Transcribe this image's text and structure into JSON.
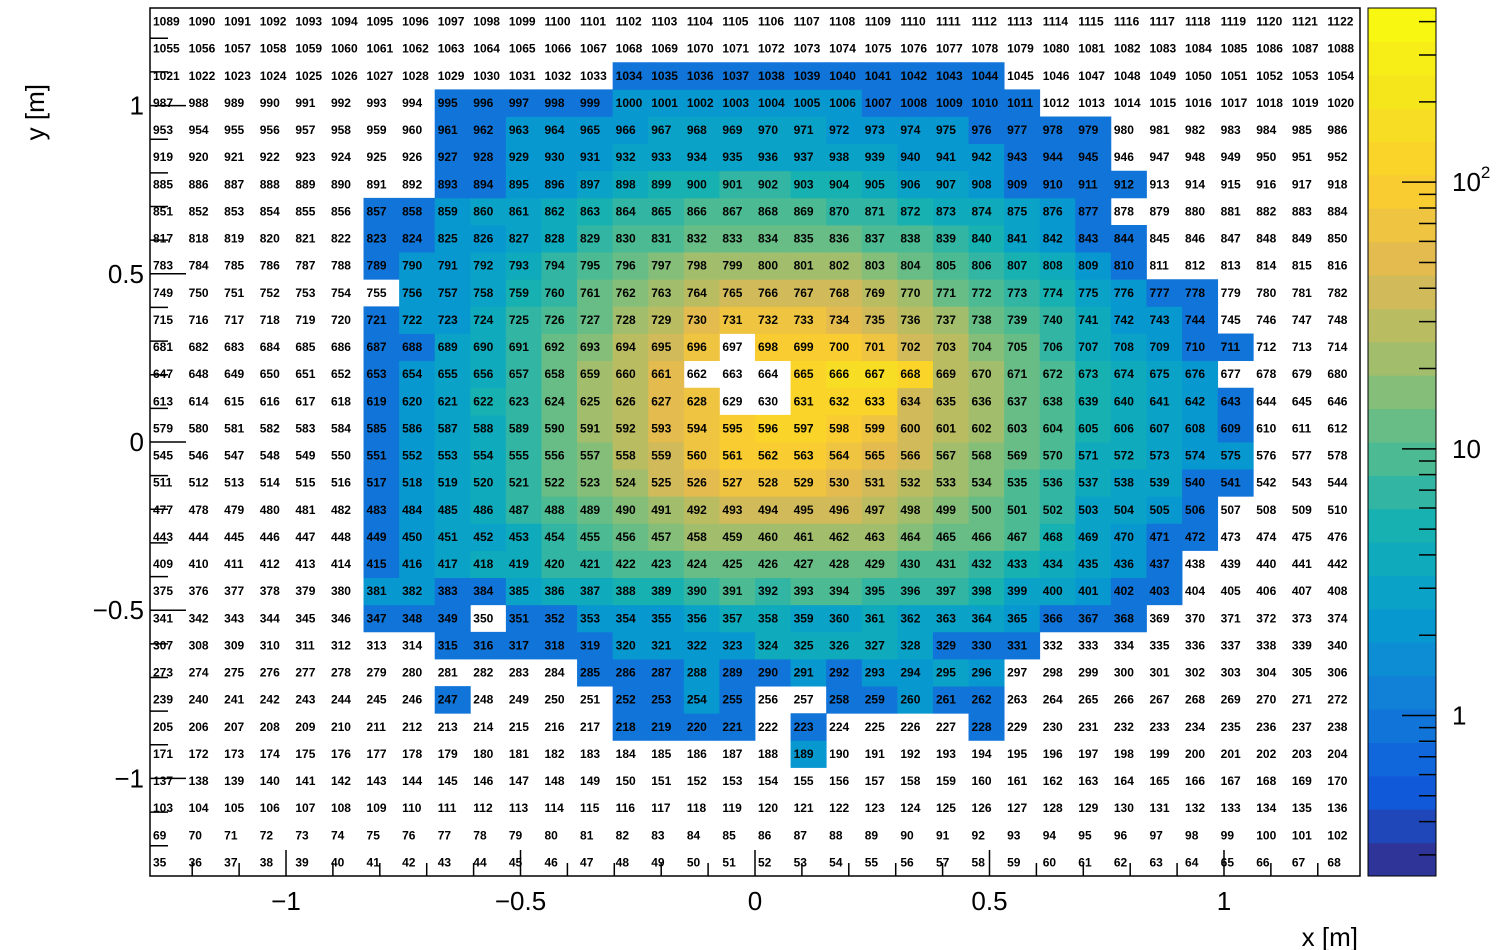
{
  "chart_data": {
    "type": "heatmap",
    "title": "",
    "xlabel": "x [m]",
    "ylabel": "y [m]",
    "xlim": [
      -1.29,
      1.29
    ],
    "ylim": [
      -1.29,
      1.29
    ],
    "columns": 34,
    "rows": 32,
    "x_ticks": [
      -1,
      -0.5,
      0,
      0.5,
      1
    ],
    "x_tick_labels": [
      "−1",
      "−0.5",
      "0",
      "0.5",
      "1"
    ],
    "y_ticks": [
      -1,
      -0.5,
      0,
      0.5,
      1
    ],
    "y_tick_labels": [
      "−1",
      "−0.5",
      "0",
      "0.5",
      "1"
    ],
    "colorbar": {
      "scale": "log",
      "range": [
        0.25,
        450
      ],
      "ticks": [
        1,
        10,
        100
      ],
      "tick_labels": [
        "1",
        "10",
        "10^2"
      ]
    },
    "cell_labels_note_start_row0": 35,
    "grid": false,
    "values": [
      [
        0,
        0,
        0,
        0,
        0,
        0,
        0,
        0,
        0,
        0,
        0,
        0,
        0,
        0,
        0,
        0,
        0,
        0,
        0,
        0,
        0,
        0,
        0,
        0,
        0,
        0,
        0,
        0,
        0,
        0,
        0,
        0,
        0,
        0
      ],
      [
        0,
        0,
        0,
        0,
        0,
        0,
        0,
        0,
        0,
        0,
        0,
        0,
        0,
        0,
        0,
        0,
        0,
        0,
        0,
        0,
        0,
        0,
        0,
        0,
        0,
        0,
        0,
        0,
        0,
        0,
        0,
        0,
        0,
        0
      ],
      [
        0,
        0,
        0,
        0,
        0,
        0,
        0,
        0,
        0,
        0,
        0,
        0,
        0,
        0,
        0,
        0,
        0,
        0,
        0,
        0,
        0,
        0,
        0,
        0,
        0,
        0,
        0,
        0,
        0,
        0,
        0,
        0,
        0,
        0
      ],
      [
        0,
        0,
        0,
        0,
        0,
        0,
        0,
        0,
        0,
        0,
        0,
        0,
        0,
        0,
        0,
        0,
        0,
        0,
        0,
        0,
        0,
        0,
        0,
        0,
        0,
        0,
        0,
        0,
        0,
        0,
        0,
        0,
        0,
        0
      ],
      [
        0,
        0,
        0,
        0,
        0,
        0,
        0,
        0,
        0,
        0,
        0,
        0,
        0,
        0,
        0,
        0,
        0,
        0,
        2,
        0,
        0,
        0,
        0,
        0,
        0,
        0,
        0,
        0,
        0,
        0,
        0,
        0,
        0,
        0
      ],
      [
        0,
        0,
        0,
        0,
        0,
        0,
        0,
        0,
        0,
        0,
        0,
        0,
        0,
        1,
        1,
        1,
        1,
        0,
        1,
        0,
        0,
        0,
        0,
        1,
        0,
        0,
        0,
        0,
        0,
        0,
        0,
        0,
        0,
        0
      ],
      [
        0,
        0,
        0,
        0,
        0,
        0,
        0,
        0,
        1,
        0,
        0,
        0,
        0,
        1,
        1,
        2,
        1,
        0,
        0,
        1,
        1,
        2,
        1,
        1,
        0,
        0,
        0,
        0,
        0,
        0,
        0,
        0,
        0,
        0
      ],
      [
        0,
        0,
        0,
        0,
        0,
        0,
        0,
        0,
        0,
        0,
        0,
        0,
        1,
        1,
        1,
        2,
        1,
        1,
        2,
        1,
        2,
        2,
        3,
        2,
        0,
        0,
        0,
        0,
        0,
        0,
        0,
        0,
        0,
        0
      ],
      [
        0,
        0,
        0,
        0,
        0,
        0,
        0,
        0,
        1,
        1,
        1,
        1,
        1,
        2,
        2,
        2,
        2,
        4,
        4,
        4,
        4,
        3,
        1,
        1,
        1,
        0,
        0,
        0,
        0,
        0,
        0,
        0,
        0,
        0
      ],
      [
        0,
        0,
        0,
        0,
        0,
        0,
        1,
        1,
        1,
        0,
        1,
        1,
        2,
        2,
        2,
        3,
        4,
        4,
        3,
        3,
        4,
        3,
        3,
        3,
        2,
        1,
        1,
        1,
        0,
        0,
        0,
        0,
        0,
        0
      ],
      [
        0,
        0,
        0,
        0,
        0,
        0,
        2,
        2,
        1,
        1,
        3,
        4,
        4,
        5,
        5,
        6,
        9,
        7,
        8,
        8,
        7,
        6,
        6,
        5,
        3,
        3,
        2,
        1,
        1,
        0,
        0,
        0,
        0,
        0
      ],
      [
        0,
        0,
        0,
        0,
        0,
        0,
        1,
        2,
        3,
        4,
        4,
        6,
        7,
        9,
        10,
        11,
        13,
        14,
        13,
        12,
        11,
        10,
        8,
        6,
        5,
        4,
        3,
        2,
        1,
        0,
        0,
        0,
        0,
        0
      ],
      [
        0,
        0,
        0,
        0,
        0,
        0,
        1,
        2,
        3,
        3,
        4,
        6,
        9,
        12,
        16,
        19,
        22,
        25,
        25,
        23,
        20,
        17,
        14,
        11,
        8,
        5,
        3,
        2,
        1,
        1,
        0,
        0,
        0,
        0
      ],
      [
        0,
        0,
        0,
        0,
        0,
        0,
        1,
        2,
        3,
        4,
        6,
        9,
        13,
        18,
        24,
        31,
        38,
        40,
        39,
        36,
        29,
        22,
        17,
        14,
        9,
        6,
        3,
        3,
        2,
        1,
        0,
        0,
        0,
        0
      ],
      [
        0,
        0,
        0,
        0,
        0,
        0,
        1,
        2,
        3,
        4,
        6,
        11,
        16,
        24,
        36,
        49,
        62,
        68,
        64,
        56,
        42,
        29,
        22,
        16,
        10,
        6,
        4,
        3,
        3,
        1,
        1,
        0,
        0,
        0
      ],
      [
        0,
        0,
        0,
        0,
        0,
        0,
        1,
        2,
        3,
        4,
        7,
        11,
        18,
        29,
        43,
        63,
        85,
        95,
        88,
        71,
        52,
        35,
        25,
        18,
        12,
        8,
        4,
        4,
        3,
        2,
        2,
        0,
        0,
        0
      ],
      [
        0,
        0,
        0,
        0,
        0,
        0,
        1,
        2,
        3,
        4,
        7,
        12,
        19,
        30,
        47,
        72,
        104,
        120,
        112,
        82,
        60,
        40,
        27,
        19,
        13,
        8,
        5,
        4,
        3,
        2,
        1,
        0,
        0,
        0
      ],
      [
        0,
        0,
        0,
        0,
        0,
        0,
        1,
        2,
        3,
        5,
        7,
        12,
        19,
        30,
        49,
        78,
        0,
        0,
        133,
        142,
        122,
        44,
        28,
        20,
        13,
        8,
        5,
        4,
        3,
        2,
        1,
        0,
        0,
        0
      ],
      [
        0,
        0,
        0,
        0,
        0,
        0,
        1,
        2,
        3,
        4,
        7,
        12,
        19,
        30,
        48,
        0,
        0,
        0,
        108,
        170,
        160,
        136,
        29,
        19,
        13,
        8,
        5,
        4,
        3,
        2,
        0,
        0,
        0,
        0
      ],
      [
        0,
        0,
        0,
        0,
        0,
        0,
        1,
        1,
        3,
        4,
        6,
        11,
        17,
        27,
        42,
        64,
        0,
        98,
        96,
        89,
        60,
        41,
        26,
        17,
        11,
        7,
        4,
        3,
        2,
        1,
        1,
        0,
        0,
        0
      ],
      [
        0,
        0,
        0,
        0,
        0,
        0,
        1,
        2,
        2,
        4,
        6,
        9,
        14,
        21,
        32,
        47,
        63,
        72,
        68,
        56,
        41,
        29,
        19,
        13,
        9,
        6,
        4,
        2,
        2,
        1,
        0,
        0,
        0,
        0
      ],
      [
        0,
        0,
        0,
        0,
        0,
        0,
        0,
        2,
        2,
        3,
        5,
        7,
        11,
        16,
        23,
        31,
        39,
        43,
        41,
        35,
        27,
        20,
        14,
        10,
        7,
        5,
        3,
        2,
        1,
        1,
        0,
        0,
        0,
        0
      ],
      [
        0,
        0,
        0,
        0,
        0,
        0,
        1,
        2,
        2,
        3,
        4,
        6,
        8,
        11,
        15,
        19,
        23,
        24,
        23,
        21,
        17,
        13,
        10,
        7,
        5,
        4,
        2,
        1,
        0,
        0,
        0,
        0,
        0,
        0
      ],
      [
        0,
        0,
        0,
        0,
        0,
        0,
        1,
        1,
        2,
        2,
        3,
        4,
        6,
        8,
        10,
        12,
        13,
        14,
        13,
        12,
        10,
        8,
        6,
        5,
        3,
        2,
        1,
        1,
        0,
        0,
        0,
        0,
        0,
        0
      ],
      [
        0,
        0,
        0,
        0,
        0,
        0,
        1,
        1,
        2,
        3,
        3,
        4,
        5,
        6,
        7,
        8,
        8,
        9,
        8,
        7,
        6,
        5,
        4,
        4,
        3,
        2,
        1,
        0,
        0,
        0,
        0,
        0,
        0,
        0
      ],
      [
        0,
        0,
        0,
        0,
        0,
        0,
        0,
        0,
        1,
        1,
        2,
        2,
        3,
        4,
        5,
        5,
        6,
        6,
        5,
        5,
        4,
        3,
        3,
        2,
        1,
        1,
        1,
        1,
        0,
        0,
        0,
        0,
        0,
        0
      ],
      [
        0,
        0,
        0,
        0,
        0,
        0,
        0,
        0,
        1,
        1,
        2,
        2,
        2,
        3,
        3,
        3,
        3,
        3,
        3,
        3,
        3,
        2,
        2,
        2,
        1,
        1,
        1,
        0,
        0,
        0,
        0,
        0,
        0,
        0
      ],
      [
        0,
        0,
        0,
        0,
        0,
        0,
        0,
        0,
        1,
        1,
        2,
        2,
        2,
        2,
        3,
        3,
        3,
        3,
        3,
        2,
        2,
        2,
        2,
        1,
        1,
        1,
        1,
        0,
        0,
        0,
        0,
        0,
        0,
        0
      ],
      [
        0,
        0,
        0,
        0,
        0,
        0,
        0,
        0,
        1,
        1,
        1,
        1,
        1,
        2,
        2,
        2,
        2,
        2,
        2,
        2,
        1,
        1,
        1,
        1,
        1,
        0,
        0,
        0,
        0,
        0,
        0,
        0,
        0,
        0
      ],
      [
        0,
        0,
        0,
        0,
        0,
        0,
        0,
        0,
        0,
        0,
        0,
        0,
        0,
        1,
        1,
        1,
        1,
        1,
        1,
        1,
        1,
        1,
        1,
        1,
        0,
        0,
        0,
        0,
        0,
        0,
        0,
        0,
        0,
        0
      ],
      [
        0,
        0,
        0,
        0,
        0,
        0,
        0,
        0,
        0,
        0,
        0,
        0,
        0,
        0,
        0,
        0,
        0,
        0,
        0,
        0,
        0,
        0,
        0,
        0,
        0,
        0,
        0,
        0,
        0,
        0,
        0,
        0,
        0,
        0
      ],
      [
        0,
        0,
        0,
        0,
        0,
        0,
        0,
        0,
        0,
        0,
        0,
        0,
        0,
        0,
        0,
        0,
        0,
        0,
        0,
        0,
        0,
        0,
        0,
        0,
        0,
        0,
        0,
        0,
        0,
        0,
        0,
        0,
        0,
        0
      ]
    ],
    "label_start": 35
  }
}
